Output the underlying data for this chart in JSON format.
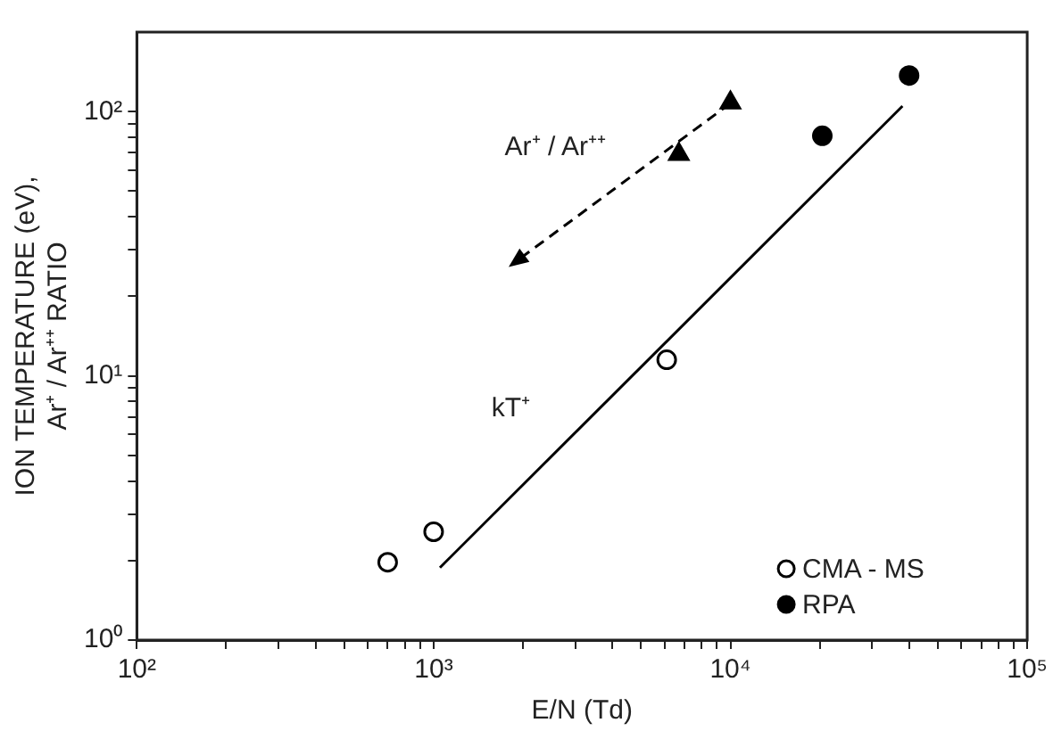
{
  "chart_data": {
    "type": "scatter",
    "xlabel": "E/N (Td)",
    "ylabel": "ION TEMPERATURE (eV),\nAr⁺ / Ar⁺⁺ RATIO",
    "log": "xy",
    "xlim": [
      100,
      100000
    ],
    "ylim": [
      1,
      200
    ],
    "xticks": [
      {
        "value": 100,
        "label": "10²"
      },
      {
        "value": 200,
        "label": null
      },
      {
        "value": 300,
        "label": null
      },
      {
        "value": 400,
        "label": null
      },
      {
        "value": 500,
        "label": null
      },
      {
        "value": 600,
        "label": null
      },
      {
        "value": 700,
        "label": null
      },
      {
        "value": 800,
        "label": null
      },
      {
        "value": 900,
        "label": null
      },
      {
        "value": 1000,
        "label": "10³"
      },
      {
        "value": 2000,
        "label": null
      },
      {
        "value": 3000,
        "label": null
      },
      {
        "value": 4000,
        "label": null
      },
      {
        "value": 5000,
        "label": null
      },
      {
        "value": 6000,
        "label": null
      },
      {
        "value": 7000,
        "label": null
      },
      {
        "value": 8000,
        "label": null
      },
      {
        "value": 9000,
        "label": null
      },
      {
        "value": 10000,
        "label": "10⁴"
      },
      {
        "value": 20000,
        "label": null
      },
      {
        "value": 30000,
        "label": null
      },
      {
        "value": 40000,
        "label": null
      },
      {
        "value": 50000,
        "label": null
      },
      {
        "value": 60000,
        "label": null
      },
      {
        "value": 70000,
        "label": null
      },
      {
        "value": 80000,
        "label": null
      },
      {
        "value": 90000,
        "label": null
      },
      {
        "value": 100000,
        "label": "10⁵"
      }
    ],
    "yticks": [
      {
        "value": 1,
        "label": "10⁰"
      },
      {
        "value": 2,
        "label": null
      },
      {
        "value": 3,
        "label": null
      },
      {
        "value": 4,
        "label": null
      },
      {
        "value": 5,
        "label": null
      },
      {
        "value": 6,
        "label": null
      },
      {
        "value": 7,
        "label": null
      },
      {
        "value": 8,
        "label": null
      },
      {
        "value": 9,
        "label": null
      },
      {
        "value": 10,
        "label": "10¹"
      },
      {
        "value": 20,
        "label": null
      },
      {
        "value": 30,
        "label": null
      },
      {
        "value": 40,
        "label": null
      },
      {
        "value": 50,
        "label": null
      },
      {
        "value": 60,
        "label": null
      },
      {
        "value": 70,
        "label": null
      },
      {
        "value": 80,
        "label": null
      },
      {
        "value": 90,
        "label": null
      },
      {
        "value": 100,
        "label": "10²"
      }
    ],
    "grid": false,
    "legend": "bottom right",
    "series": [
      {
        "name": "CMA - MS",
        "marker": "circle",
        "color": "#000000",
        "x": [
          700,
          1000,
          6100
        ],
        "values": [
          1.97,
          2.57,
          11.5
        ]
      },
      {
        "name": "RPA",
        "marker": "circle",
        "color": "#000000",
        "x": [
          20400,
          40000
        ],
        "values": [
          81,
          137
        ]
      },
      {
        "marker": "triangle",
        "color": "#000000",
        "x": [
          6700,
          10000
        ],
        "values": [
          69,
          108
        ]
      },
      {
        "type": "line",
        "marker": "none",
        "line_style": "solid",
        "color": "#000000",
        "x": [
          1050,
          38000
        ],
        "values": [
          1.88,
          105
        ]
      }
    ],
    "annotations": [
      "Ar⁺ / Ar⁺⁺",
      "kT⁺"
    ]
  }
}
